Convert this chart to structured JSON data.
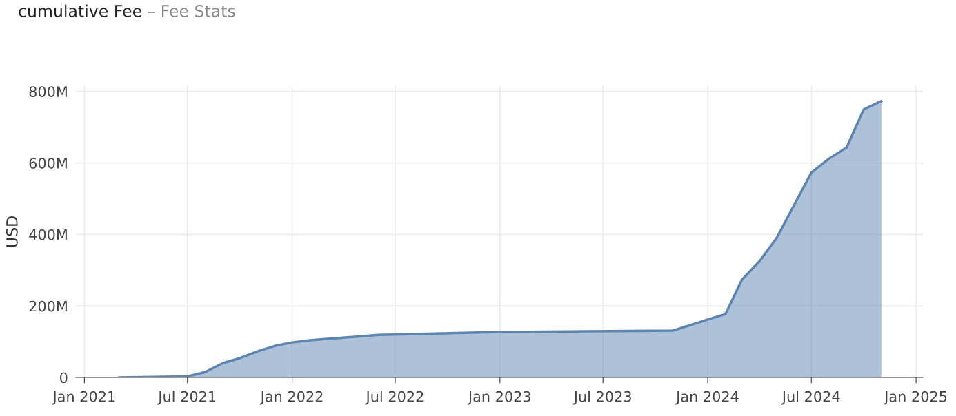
{
  "chart_data": {
    "type": "area",
    "title": "cumulative Fee",
    "subtitle": "– Fee Stats",
    "ylabel": "USD",
    "x": [
      "2021-03-03",
      "2021-07-01",
      "2021-08-01",
      "2021-09-01",
      "2021-10-01",
      "2021-11-01",
      "2021-12-01",
      "2022-01-01",
      "2022-02-01",
      "2022-06-01",
      "2023-01-01",
      "2023-11-01",
      "2024-01-01",
      "2024-02-01",
      "2024-03-01",
      "2024-04-01",
      "2024-05-01",
      "2024-06-01",
      "2024-07-01",
      "2024-08-01",
      "2024-09-01",
      "2024-10-01",
      "2024-11-01"
    ],
    "series": [
      {
        "color": "#5b84b1",
        "values": [
          0,
          3,
          15,
          40,
          54,
          73,
          88,
          98,
          104,
          119,
          127,
          131,
          162,
          177,
          273,
          325,
          390,
          483,
          573,
          612,
          643,
          750,
          773
        ]
      }
    ],
    "xlim": [
      "2020-12-17",
      "2025-01-13"
    ],
    "xticks": [
      {
        "value": "2021-01-01",
        "label": "Jan 2021"
      },
      {
        "value": "2021-07-01",
        "label": "Jul 2021"
      },
      {
        "value": "2022-01-01",
        "label": "Jan 2022"
      },
      {
        "value": "2022-07-01",
        "label": "Jul 2022"
      },
      {
        "value": "2023-01-01",
        "label": "Jan 2023"
      },
      {
        "value": "2023-07-01",
        "label": "Jul 2023"
      },
      {
        "value": "2024-01-01",
        "label": "Jan 2024"
      },
      {
        "value": "2024-07-01",
        "label": "Jul 2024"
      },
      {
        "value": "2025-01-01",
        "label": "Jan 2025"
      }
    ],
    "ylim": [
      0,
      815
    ],
    "yticks": [
      0,
      {
        "value": 200,
        "label": "200M"
      },
      {
        "value": 400,
        "label": "400M"
      },
      {
        "value": 600,
        "label": "600M"
      },
      {
        "value": 800,
        "label": "800M"
      }
    ],
    "grid": true,
    "legend": false
  }
}
